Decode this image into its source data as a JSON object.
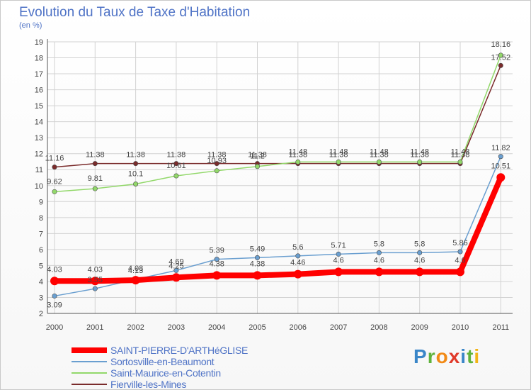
{
  "header": {
    "title": "Evolution du Taux de Taxe d'Habitation",
    "subtitle": "(en %)"
  },
  "logo": {
    "letters": [
      "P",
      "r",
      "o",
      "x",
      "i",
      "t",
      "i"
    ],
    "colors": [
      "#3a86c8",
      "#5fb33c",
      "#f28a16",
      "#e03a2a",
      "#3a86c8",
      "#5fb33c",
      "#f2b416"
    ]
  },
  "chart_data": {
    "type": "line",
    "title": "Evolution du Taux de Taxe d'Habitation",
    "subtitle": "(en %)",
    "xlabel": "",
    "ylabel": "",
    "categories": [
      "2000",
      "2001",
      "2002",
      "2003",
      "2004",
      "2005",
      "2006",
      "2007",
      "2008",
      "2009",
      "2010",
      "2011"
    ],
    "ylim": [
      2,
      19
    ],
    "yticks": [
      2,
      3,
      4,
      5,
      6,
      7,
      8,
      9,
      10,
      11,
      12,
      13,
      14,
      15,
      16,
      17,
      18,
      19
    ],
    "grid": true,
    "legend_position": "bottom-left",
    "series": [
      {
        "name": "SAINT-PIERRE-D'ARTHéGLISE",
        "color": "#ff0000",
        "values": [
          4.03,
          4.03,
          4.08,
          4.25,
          4.38,
          4.38,
          4.46,
          4.6,
          4.6,
          4.6,
          4.6,
          10.51
        ],
        "labels": [
          "4.03",
          "4.03",
          "4.08",
          "4.25",
          "4.38",
          "4.38",
          "4.46",
          "4.6",
          "4.6",
          "4.6",
          "4.6",
          "10.51"
        ]
      },
      {
        "name": "Sortosville-en-Beaumont",
        "color": "#6a9fd0",
        "values": [
          3.09,
          3.55,
          4.13,
          4.69,
          5.39,
          5.49,
          5.6,
          5.71,
          5.8,
          5.8,
          5.86,
          11.82
        ],
        "labels": [
          "3.09",
          "3.55",
          "4.13",
          "4.69",
          "5.39",
          "5.49",
          "5.6",
          "5.71",
          "5.8",
          "5.8",
          "5.86",
          "11.82"
        ]
      },
      {
        "name": "Saint-Maurice-en-Cotentin",
        "color": "#92d86a",
        "values": [
          9.62,
          9.81,
          10.1,
          10.61,
          10.93,
          11.2,
          11.48,
          11.48,
          11.48,
          11.48,
          11.48,
          18.16
        ],
        "labels": [
          "9.62",
          "9.81",
          "10.1",
          "10.61",
          "10.93",
          "11.2",
          "11.48",
          "11.48",
          "11.48",
          "11.48",
          "11.48",
          "18.16"
        ]
      },
      {
        "name": "Fierville-les-Mines",
        "color": "#7a2b2b",
        "values": [
          11.16,
          11.38,
          11.38,
          11.38,
          11.38,
          11.38,
          11.38,
          11.38,
          11.38,
          11.38,
          11.38,
          17.52
        ],
        "labels": [
          "11.16",
          "11.38",
          "11.38",
          "11.38",
          "11.38",
          "11.38",
          "11.38",
          "11.38",
          "11.38",
          "11.38",
          "11.38",
          "17.52"
        ]
      }
    ]
  }
}
